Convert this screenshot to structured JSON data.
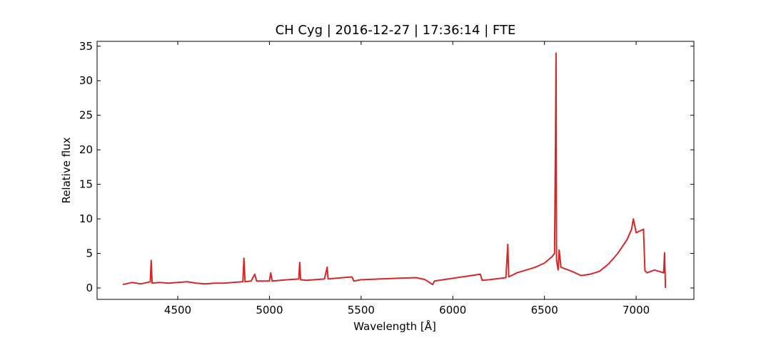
{
  "chart_data": {
    "type": "line",
    "title": "CH Cyg | 2016-12-27 | 17:36:14 | FTE",
    "x_label": "Wavelength [Å]",
    "y_label": "Relative flux",
    "x": [
      4200,
      4250,
      4300,
      4350,
      4355,
      4360,
      4400,
      4450,
      4500,
      4550,
      4600,
      4650,
      4700,
      4750,
      4800,
      4855,
      4861,
      4867,
      4900,
      4920,
      4930,
      5000,
      5007,
      5015,
      5100,
      5160,
      5165,
      5170,
      5200,
      5300,
      5315,
      5320,
      5400,
      5450,
      5460,
      5500,
      5600,
      5700,
      5800,
      5850,
      5890,
      5900,
      6000,
      6100,
      6150,
      6160,
      6200,
      6290,
      6300,
      6305,
      6350,
      6400,
      6450,
      6500,
      6540,
      6555,
      6560,
      6563,
      6566,
      6575,
      6580,
      6590,
      6650,
      6700,
      6750,
      6800,
      6850,
      6900,
      6950,
      6975,
      6985,
      7000,
      7040,
      7048,
      7060,
      7100,
      7150,
      7155,
      7160
    ],
    "series": [
      {
        "name": "CH Cyg",
        "color": "#d62728",
        "values": [
          0.5,
          0.8,
          0.6,
          0.9,
          4.0,
          0.7,
          0.8,
          0.7,
          0.8,
          0.9,
          0.7,
          0.6,
          0.7,
          0.7,
          0.8,
          0.9,
          4.3,
          0.9,
          1.0,
          2.0,
          1.0,
          1.0,
          2.2,
          1.0,
          1.2,
          1.3,
          3.7,
          1.2,
          1.1,
          1.3,
          3.0,
          1.3,
          1.5,
          1.6,
          1.0,
          1.2,
          1.3,
          1.4,
          1.5,
          1.2,
          0.5,
          1.0,
          1.4,
          1.8,
          2.0,
          1.1,
          1.2,
          1.5,
          6.3,
          1.6,
          2.2,
          2.6,
          3.0,
          3.6,
          4.5,
          5.0,
          21,
          34,
          4,
          2.6,
          5.5,
          3,
          2.4,
          1.8,
          2.0,
          2.4,
          3.5,
          5,
          7,
          8.5,
          10,
          8,
          8.5,
          2.5,
          2.2,
          2.6,
          2.2,
          5.1,
          0
        ]
      }
    ],
    "xlim": [
      4060,
      7315
    ],
    "ylim": [
      -1.65,
      35.7
    ],
    "xticks": [
      4500,
      5000,
      5500,
      6000,
      6500,
      7000
    ],
    "yticks": [
      0,
      5,
      10,
      15,
      20,
      25,
      30,
      35
    ]
  }
}
